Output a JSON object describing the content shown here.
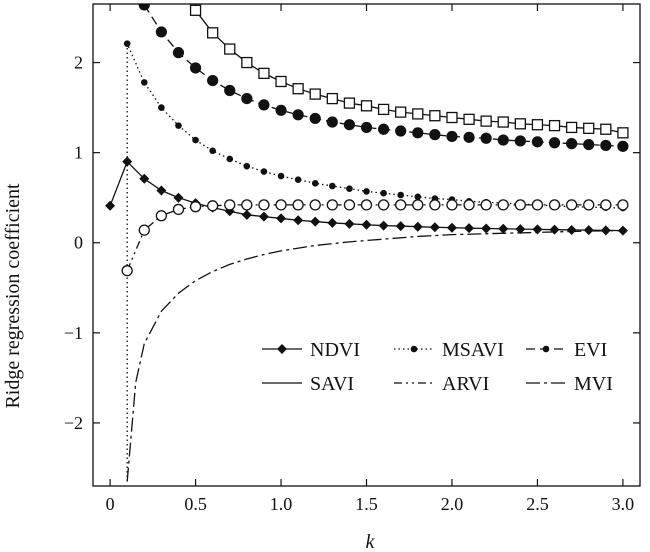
{
  "chart_data": {
    "type": "line",
    "title": "",
    "xlabel": "k",
    "ylabel": "Ridge regression coefficient",
    "xlim": [
      -0.1,
      3.1
    ],
    "ylim": [
      -2.7,
      2.65
    ],
    "xticks": [
      0,
      0.5,
      1.0,
      1.5,
      2.0,
      2.5,
      3.0
    ],
    "xtick_labels": [
      "0",
      "0.5",
      "1.0",
      "1.5",
      "2.0",
      "2.5",
      "3.0"
    ],
    "yticks": [
      -2,
      -1,
      0,
      1,
      2
    ],
    "ytick_labels": [
      "−2",
      "−1",
      "0",
      "1",
      "2"
    ],
    "grid": false,
    "legend_position": "lower-right",
    "series": [
      {
        "name": "NDVI",
        "style": "solid",
        "marker": "diamond",
        "x": [
          0,
          0.1,
          0.2,
          0.3,
          0.4,
          0.5,
          0.6,
          0.7,
          0.8,
          0.9,
          1.0,
          1.1,
          1.2,
          1.3,
          1.4,
          1.5,
          1.6,
          1.7,
          1.8,
          1.9,
          2.0,
          2.1,
          2.2,
          2.3,
          2.4,
          2.5,
          2.6,
          2.7,
          2.8,
          2.9,
          3.0
        ],
        "y": [
          0.41,
          0.9,
          0.71,
          0.58,
          0.5,
          0.44,
          0.39,
          0.35,
          0.31,
          0.29,
          0.27,
          0.25,
          0.235,
          0.22,
          0.21,
          0.2,
          0.19,
          0.185,
          0.178,
          0.172,
          0.167,
          0.162,
          0.158,
          0.155,
          0.151,
          0.148,
          0.145,
          0.142,
          0.14,
          0.137,
          0.135
        ]
      },
      {
        "name": "MSAVI",
        "style": "dotted",
        "marker": "small-dot",
        "x": [
          0.1,
          0.1,
          0.2,
          0.3,
          0.4,
          0.5,
          0.6,
          0.7,
          0.8,
          0.9,
          1.0,
          1.1,
          1.2,
          1.3,
          1.4,
          1.5,
          1.6,
          1.7,
          1.8,
          1.9,
          2.0,
          2.1,
          2.2,
          2.3,
          2.4,
          2.5,
          2.6,
          2.7,
          2.8,
          2.9,
          3.0
        ],
        "y": [
          -2.65,
          2.21,
          1.78,
          1.5,
          1.3,
          1.14,
          1.02,
          0.93,
          0.85,
          0.79,
          0.74,
          0.7,
          0.66,
          0.63,
          0.6,
          0.57,
          0.55,
          0.53,
          0.51,
          0.49,
          0.48,
          0.46,
          0.45,
          0.44,
          0.43,
          0.42,
          0.41,
          0.4,
          0.395,
          0.39,
          0.385
        ]
      },
      {
        "name": "EVI",
        "style": "dashed",
        "marker": "filled-circle",
        "x": [
          0.2,
          0.3,
          0.4,
          0.5,
          0.6,
          0.7,
          0.8,
          0.9,
          1.0,
          1.1,
          1.2,
          1.3,
          1.4,
          1.5,
          1.6,
          1.7,
          1.8,
          1.9,
          2.0,
          2.1,
          2.2,
          2.3,
          2.4,
          2.5,
          2.6,
          2.7,
          2.8,
          2.9,
          3.0
        ],
        "y": [
          2.64,
          2.34,
          2.11,
          1.94,
          1.8,
          1.69,
          1.6,
          1.53,
          1.47,
          1.42,
          1.38,
          1.34,
          1.31,
          1.28,
          1.26,
          1.24,
          1.22,
          1.2,
          1.18,
          1.17,
          1.16,
          1.14,
          1.13,
          1.12,
          1.11,
          1.1,
          1.09,
          1.08,
          1.07
        ]
      },
      {
        "name": "SAVI",
        "style": "solid",
        "marker": "open-square",
        "x": [
          0.5,
          0.6,
          0.7,
          0.8,
          0.9,
          1.0,
          1.1,
          1.2,
          1.3,
          1.4,
          1.5,
          1.6,
          1.7,
          1.8,
          1.9,
          2.0,
          2.1,
          2.2,
          2.3,
          2.4,
          2.5,
          2.6,
          2.7,
          2.8,
          2.9,
          3.0
        ],
        "y": [
          2.58,
          2.33,
          2.15,
          2.0,
          1.88,
          1.79,
          1.71,
          1.65,
          1.6,
          1.55,
          1.52,
          1.48,
          1.45,
          1.43,
          1.41,
          1.39,
          1.37,
          1.35,
          1.34,
          1.32,
          1.31,
          1.3,
          1.28,
          1.27,
          1.26,
          1.22
        ]
      },
      {
        "name": "ARVI",
        "style": "dash-dot",
        "marker": "open-circle",
        "x": [
          0.1,
          0.2,
          0.3,
          0.4,
          0.5,
          0.6,
          0.7,
          0.8,
          0.9,
          1.0,
          1.1,
          1.2,
          1.3,
          1.4,
          1.5,
          1.6,
          1.7,
          1.8,
          1.9,
          2.0,
          2.1,
          2.2,
          2.3,
          2.4,
          2.5,
          2.6,
          2.7,
          2.8,
          2.9,
          3.0
        ],
        "y": [
          -0.31,
          0.14,
          0.3,
          0.37,
          0.4,
          0.41,
          0.42,
          0.42,
          0.42,
          0.42,
          0.42,
          0.42,
          0.42,
          0.42,
          0.42,
          0.42,
          0.42,
          0.42,
          0.42,
          0.42,
          0.42,
          0.42,
          0.42,
          0.42,
          0.42,
          0.42,
          0.42,
          0.42,
          0.42,
          0.42
        ]
      },
      {
        "name": "MVI",
        "style": "long-dash-dot",
        "marker": "none",
        "x": [
          0.1,
          0.15,
          0.2,
          0.3,
          0.4,
          0.5,
          0.6,
          0.7,
          0.8,
          0.9,
          1.0,
          1.2,
          1.4,
          1.6,
          1.8,
          2.0,
          2.2,
          2.4,
          2.6,
          2.8,
          3.0
        ],
        "y": [
          -2.65,
          -1.55,
          -1.12,
          -0.76,
          -0.56,
          -0.42,
          -0.32,
          -0.24,
          -0.18,
          -0.13,
          -0.09,
          -0.03,
          0.01,
          0.04,
          0.07,
          0.09,
          0.1,
          0.11,
          0.12,
          0.13,
          0.135
        ]
      }
    ],
    "legend": {
      "rows": [
        [
          "NDVI",
          "MSAVI",
          "EVI"
        ],
        [
          "SAVI",
          "ARVI",
          "MVI"
        ]
      ]
    }
  }
}
